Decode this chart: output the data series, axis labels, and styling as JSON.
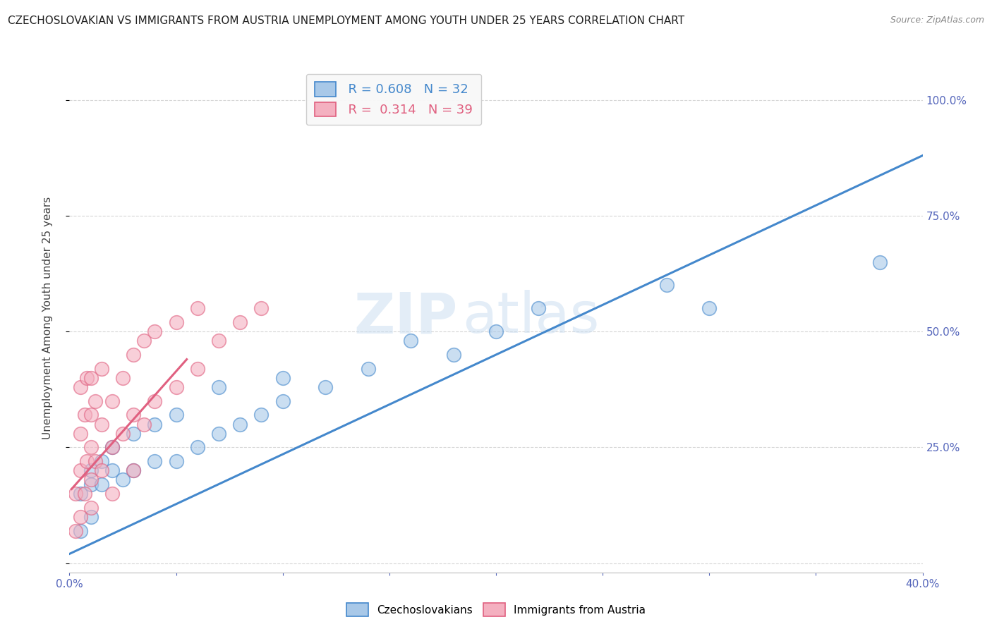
{
  "title": "CZECHOSLOVAKIAN VS IMMIGRANTS FROM AUSTRIA UNEMPLOYMENT AMONG YOUTH UNDER 25 YEARS CORRELATION CHART",
  "source": "Source: ZipAtlas.com",
  "ylabel": "Unemployment Among Youth under 25 years",
  "xlim": [
    0.0,
    0.4
  ],
  "ylim": [
    -0.02,
    1.08
  ],
  "xticks": [
    0.0,
    0.05,
    0.1,
    0.15,
    0.2,
    0.25,
    0.3,
    0.35,
    0.4
  ],
  "xtick_labels": [
    "0.0%",
    "",
    "",
    "",
    "",
    "",
    "",
    "",
    "40.0%"
  ],
  "yticks": [
    0.0,
    0.25,
    0.5,
    0.75,
    1.0
  ],
  "ytick_labels": [
    "",
    "25.0%",
    "50.0%",
    "75.0%",
    "100.0%"
  ],
  "R_blue": 0.608,
  "N_blue": 32,
  "R_pink": 0.314,
  "N_pink": 39,
  "blue_color": "#A8C8E8",
  "pink_color": "#F4B0C0",
  "blue_line_color": "#4488CC",
  "pink_line_color": "#E06080",
  "watermark_zip": "ZIP",
  "watermark_atlas": "atlas",
  "blue_scatter_x": [
    0.005,
    0.005,
    0.01,
    0.01,
    0.01,
    0.015,
    0.015,
    0.02,
    0.02,
    0.025,
    0.03,
    0.03,
    0.04,
    0.04,
    0.05,
    0.05,
    0.06,
    0.07,
    0.07,
    0.08,
    0.09,
    0.1,
    0.1,
    0.12,
    0.14,
    0.16,
    0.18,
    0.2,
    0.22,
    0.28,
    0.3,
    0.38
  ],
  "blue_scatter_y": [
    0.07,
    0.15,
    0.1,
    0.17,
    0.2,
    0.17,
    0.22,
    0.2,
    0.25,
    0.18,
    0.2,
    0.28,
    0.22,
    0.3,
    0.22,
    0.32,
    0.25,
    0.28,
    0.38,
    0.3,
    0.32,
    0.35,
    0.4,
    0.38,
    0.42,
    0.48,
    0.45,
    0.5,
    0.55,
    0.6,
    0.55,
    0.65
  ],
  "pink_scatter_x": [
    0.003,
    0.003,
    0.005,
    0.005,
    0.005,
    0.005,
    0.007,
    0.007,
    0.008,
    0.008,
    0.01,
    0.01,
    0.01,
    0.01,
    0.01,
    0.012,
    0.012,
    0.015,
    0.015,
    0.015,
    0.02,
    0.02,
    0.02,
    0.025,
    0.025,
    0.03,
    0.03,
    0.03,
    0.035,
    0.035,
    0.04,
    0.04,
    0.05,
    0.05,
    0.06,
    0.06,
    0.07,
    0.08,
    0.09
  ],
  "pink_scatter_y": [
    0.07,
    0.15,
    0.1,
    0.2,
    0.28,
    0.38,
    0.15,
    0.32,
    0.22,
    0.4,
    0.12,
    0.18,
    0.25,
    0.32,
    0.4,
    0.22,
    0.35,
    0.2,
    0.3,
    0.42,
    0.15,
    0.25,
    0.35,
    0.28,
    0.4,
    0.2,
    0.32,
    0.45,
    0.3,
    0.48,
    0.35,
    0.5,
    0.38,
    0.52,
    0.42,
    0.55,
    0.48,
    0.52,
    0.55
  ],
  "blue_line_x": [
    0.0,
    0.4
  ],
  "blue_line_y": [
    0.02,
    0.88
  ],
  "pink_line_x": [
    0.001,
    0.055
  ],
  "pink_line_y": [
    0.16,
    0.44
  ],
  "background_color": "#FFFFFF"
}
